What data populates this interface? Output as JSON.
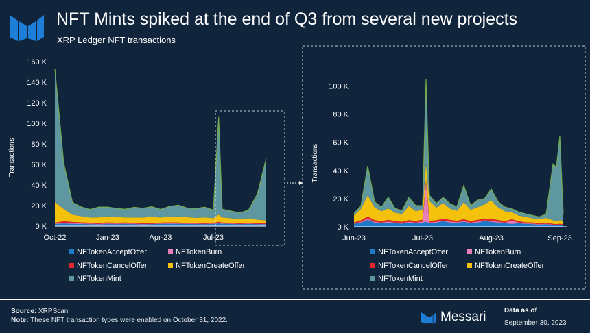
{
  "header": {
    "title": "NFT Mints spiked at the end of Q3 from several new projects",
    "subtitle": "XRP Ledger NFT transactions"
  },
  "colors": {
    "background": "#10253c",
    "NFTokenAcceptOffer": "#1f78c8",
    "NFTokenBurn": "#e57fb6",
    "NFTokenCancelOffer": "#e0282c",
    "NFTokenCreateOffer": "#f4c20d",
    "NFTokenMint": "#5f97a0",
    "mint_highlight": "#7db54a",
    "logo": "#1e7fd8"
  },
  "chart_data": [
    {
      "id": "full",
      "type": "area",
      "stacked": true,
      "ylabel": "Transactions",
      "ylim": [
        0,
        160000
      ],
      "yticks": [
        0,
        20000,
        40000,
        60000,
        80000,
        100000,
        120000,
        140000,
        160000
      ],
      "ytick_labels": [
        "0 K",
        "20 K",
        "40 K",
        "60 K",
        "80 K",
        "100 K",
        "120 K",
        "140 K",
        "160 K"
      ],
      "xlim": [
        0,
        12
      ],
      "xticks": [
        0,
        3,
        6,
        9
      ],
      "xtick_labels": [
        "Oct-22",
        "Jan-23",
        "Apr-23",
        "Jul-23"
      ],
      "x": [
        0,
        0.5,
        1,
        1.5,
        2,
        2.5,
        3,
        3.5,
        4,
        4.5,
        5,
        5.5,
        6,
        6.5,
        7,
        7.5,
        8,
        8.5,
        9,
        9.3,
        9.5,
        10,
        10.5,
        11,
        11.5,
        12
      ],
      "series": [
        {
          "name": "NFTokenAcceptOffer",
          "values": [
            2000,
            2500,
            2200,
            2000,
            1800,
            1700,
            1900,
            1800,
            2000,
            1800,
            1700,
            1800,
            2000,
            2200,
            2100,
            2000,
            1900,
            1800,
            2000,
            2500,
            2200,
            2000,
            1800,
            2000,
            1800,
            1700
          ]
        },
        {
          "name": "NFTokenBurn",
          "values": [
            500,
            800,
            700,
            600,
            500,
            500,
            600,
            500,
            500,
            500,
            400,
            400,
            500,
            500,
            500,
            400,
            400,
            400,
            400,
            800,
            500,
            400,
            400,
            400,
            300,
            300
          ]
        },
        {
          "name": "NFTokenCancelOffer",
          "values": [
            800,
            1500,
            1200,
            1100,
            1000,
            900,
            1100,
            1000,
            1000,
            900,
            800,
            800,
            900,
            1000,
            900,
            800,
            800,
            800,
            800,
            900,
            800,
            800,
            700,
            800,
            700,
            700
          ]
        },
        {
          "name": "NFTokenCreateOffer",
          "values": [
            20000,
            12000,
            7000,
            6000,
            5000,
            5500,
            6000,
            5500,
            5000,
            5200,
            5500,
            6000,
            5000,
            5500,
            6000,
            5500,
            5000,
            5500,
            4500,
            7000,
            5000,
            4500,
            4000,
            4500,
            3500,
            3000
          ]
        },
        {
          "name": "NFTokenMint",
          "values": [
            130000,
            45000,
            12000,
            9000,
            8000,
            10000,
            9000,
            8500,
            8000,
            10000,
            9000,
            10000,
            8000,
            10000,
            11000,
            9000,
            9000,
            10000,
            8000,
            95000,
            8000,
            7000,
            6000,
            8000,
            25000,
            60000
          ]
        }
      ]
    },
    {
      "id": "zoom",
      "type": "area",
      "stacked": true,
      "ylabel": "Transactions",
      "ylim": [
        0,
        110000
      ],
      "yticks": [
        0,
        20000,
        40000,
        60000,
        80000,
        100000
      ],
      "ytick_labels": [
        "0 K",
        "20 K",
        "40 K",
        "60 K",
        "80 K",
        "100 K"
      ],
      "xlim": [
        0,
        3.1
      ],
      "xticks": [
        0,
        1,
        2,
        3
      ],
      "xtick_labels": [
        "Jun-23",
        "Jul-23",
        "Aug-23",
        "Sep-23"
      ],
      "x": [
        0,
        0.1,
        0.2,
        0.3,
        0.4,
        0.5,
        0.6,
        0.7,
        0.8,
        0.9,
        1.0,
        1.05,
        1.1,
        1.2,
        1.3,
        1.4,
        1.5,
        1.6,
        1.7,
        1.8,
        1.9,
        2.0,
        2.1,
        2.2,
        2.3,
        2.4,
        2.5,
        2.6,
        2.7,
        2.8,
        2.9,
        2.95,
        3.0,
        3.05
      ],
      "series": [
        {
          "name": "NFTokenAcceptOffer",
          "values": [
            2000,
            3000,
            5000,
            3000,
            2500,
            3000,
            2500,
            2200,
            3000,
            2500,
            3000,
            3500,
            2500,
            3000,
            4000,
            3000,
            2800,
            3500,
            2500,
            3000,
            4000,
            3500,
            3000,
            2500,
            2000,
            2500,
            2000,
            1800,
            1500,
            1800,
            1200,
            1000,
            1200,
            1000
          ]
        },
        {
          "name": "NFTokenBurn",
          "values": [
            300,
            500,
            800,
            600,
            500,
            700,
            500,
            500,
            600,
            500,
            800,
            28000,
            600,
            500,
            500,
            700,
            500,
            600,
            500,
            700,
            600,
            800,
            600,
            500,
            2500,
            500,
            400,
            500,
            400,
            400,
            300,
            300,
            300,
            300
          ]
        },
        {
          "name": "NFTokenCancelOffer",
          "values": [
            800,
            1200,
            1500,
            1200,
            1000,
            1300,
            1000,
            900,
            1200,
            1100,
            1300,
            1500,
            1200,
            1100,
            1400,
            1200,
            1000,
            1300,
            1100,
            1200,
            1300,
            1500,
            1200,
            1000,
            900,
            1000,
            800,
            800,
            700,
            700,
            600,
            600,
            600,
            600
          ]
        },
        {
          "name": "NFTokenCreateOffer",
          "values": [
            5000,
            8000,
            15000,
            9000,
            7000,
            8000,
            6000,
            5500,
            10000,
            7000,
            7000,
            12000,
            14000,
            9000,
            11000,
            8000,
            7000,
            12000,
            8000,
            9000,
            10000,
            13000,
            9000,
            7000,
            5000,
            4000,
            4000,
            3000,
            3000,
            3500,
            2500,
            2500,
            2500,
            2500
          ]
        },
        {
          "name": "NFTokenMint",
          "values": [
            1500,
            2000,
            21000,
            4000,
            3000,
            8000,
            3000,
            2500,
            6000,
            4000,
            3000,
            60000,
            4000,
            3000,
            4000,
            3500,
            3000,
            12000,
            3000,
            5000,
            4000,
            8000,
            4000,
            3000,
            2500,
            2500,
            2000,
            2000,
            1500,
            2500,
            40000,
            38000,
            60000,
            5000
          ]
        }
      ]
    }
  ],
  "legend": {
    "items": [
      "NFTokenAcceptOffer",
      "NFTokenBurn",
      "NFTokenCancelOffer",
      "NFTokenCreateOffer",
      "NFTokenMint"
    ]
  },
  "footer": {
    "source_label": "Source:",
    "source_value": "XRPScan",
    "note_label": "Note:",
    "note_value": "These NFT transaction types were enabled on October 31, 2022.",
    "brand": "Messari",
    "data_as_of_label": "Data as of",
    "date": "September 30, 2023"
  },
  "icons": {
    "logo": "messari-logo-icon",
    "arrow": "arrow-right-icon",
    "brand": "messari-brand-icon"
  }
}
